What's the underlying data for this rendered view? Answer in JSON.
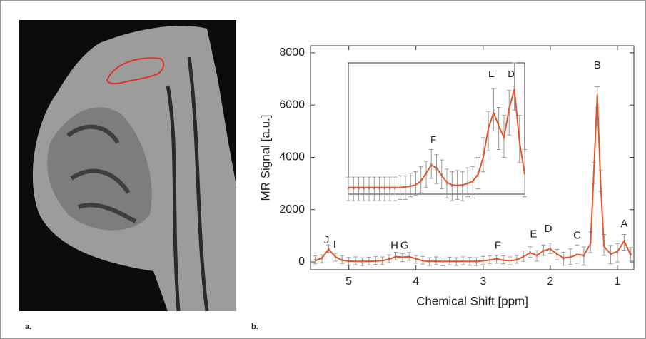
{
  "panel_labels": {
    "a": "a.",
    "b": "b."
  },
  "chart_data": [
    {
      "type": "line",
      "xlabel": "Chemical Shift [ppm]",
      "ylabel": "MR Signal [a.u.]",
      "xlim": [
        5.57,
        0.755
      ],
      "ylim": [
        -300,
        8270
      ],
      "xticks": [
        5,
        4,
        3,
        2,
        1
      ],
      "yticks": [
        0,
        2000,
        4000,
        6000,
        8000
      ],
      "x": [
        5.5,
        5.4,
        5.3,
        5.2,
        5.1,
        5.0,
        4.9,
        4.8,
        4.7,
        4.6,
        4.5,
        4.4,
        4.3,
        4.2,
        4.1,
        4.0,
        3.9,
        3.8,
        3.7,
        3.6,
        3.5,
        3.4,
        3.3,
        3.2,
        3.1,
        3.0,
        2.9,
        2.8,
        2.7,
        2.6,
        2.5,
        2.4,
        2.3,
        2.2,
        2.1,
        2.0,
        1.9,
        1.8,
        1.7,
        1.6,
        1.5,
        1.4,
        1.35,
        1.3,
        1.25,
        1.2,
        1.1,
        1.0,
        0.9,
        0.8
      ],
      "series": [
        {
          "color": "#9a9a9a",
          "values": [
            80,
            120,
            500,
            180,
            90,
            20,
            40,
            10,
            30,
            50,
            40,
            120,
            220,
            160,
            210,
            100,
            60,
            10,
            40,
            0,
            30,
            10,
            40,
            20,
            10,
            60,
            90,
            100,
            80,
            40,
            100,
            220,
            380,
            230,
            450,
            520,
            280,
            120,
            200,
            300,
            220,
            750,
            3400,
            6300,
            3100,
            650,
            280,
            350,
            750,
            300
          ],
          "errors": [
            150,
            150,
            150,
            150,
            150,
            150,
            150,
            150,
            150,
            150,
            150,
            150,
            150,
            150,
            150,
            150,
            150,
            150,
            150,
            150,
            150,
            150,
            150,
            150,
            150,
            150,
            150,
            150,
            150,
            150,
            150,
            200,
            200,
            200,
            200,
            200,
            200,
            250,
            300,
            350,
            350,
            400,
            400,
            400,
            400,
            400,
            350,
            350,
            300,
            250
          ]
        },
        {
          "color": "#e0562b",
          "values": [
            50,
            150,
            480,
            200,
            60,
            30,
            20,
            20,
            20,
            30,
            50,
            100,
            200,
            180,
            200,
            120,
            40,
            20,
            20,
            20,
            20,
            20,
            20,
            20,
            20,
            40,
            70,
            120,
            60,
            50,
            80,
            200,
            350,
            250,
            420,
            500,
            300,
            150,
            180,
            280,
            250,
            700,
            3500,
            6400,
            3000,
            600,
            300,
            400,
            800,
            250
          ]
        }
      ],
      "annotations": [
        {
          "text": "J",
          "x": 5.33,
          "y": 820
        },
        {
          "text": "I",
          "x": 5.21,
          "y": 650
        },
        {
          "text": "H",
          "x": 4.32,
          "y": 620
        },
        {
          "text": "G",
          "x": 4.17,
          "y": 620
        },
        {
          "text": "F",
          "x": 2.78,
          "y": 620
        },
        {
          "text": "E",
          "x": 2.25,
          "y": 1050
        },
        {
          "text": "D",
          "x": 2.03,
          "y": 1250
        },
        {
          "text": "C",
          "x": 1.6,
          "y": 1000
        },
        {
          "text": "B",
          "x": 1.3,
          "y": 7500
        },
        {
          "text": "A",
          "x": 0.9,
          "y": 1450
        }
      ]
    },
    {
      "type": "line",
      "xlim": [
        3.6,
        1.9
      ],
      "ylim": [
        0,
        1000
      ],
      "x": [
        3.6,
        3.55,
        3.5,
        3.45,
        3.4,
        3.35,
        3.3,
        3.25,
        3.2,
        3.15,
        3.1,
        3.05,
        3.0,
        2.95,
        2.9,
        2.85,
        2.8,
        2.75,
        2.7,
        2.65,
        2.6,
        2.55,
        2.5,
        2.45,
        2.4,
        2.35,
        2.3,
        2.25,
        2.2,
        2.15,
        2.1,
        2.05,
        2.0,
        1.95,
        1.9
      ],
      "series": [
        {
          "color": "#9a9a9a",
          "values": [
            40,
            40,
            40,
            40,
            40,
            40,
            40,
            40,
            40,
            40,
            50,
            50,
            70,
            80,
            110,
            150,
            230,
            190,
            150,
            80,
            60,
            70,
            60,
            90,
            90,
            160,
            300,
            480,
            640,
            500,
            440,
            620,
            820,
            420,
            160
          ],
          "errors": [
            90,
            90,
            90,
            90,
            90,
            90,
            90,
            90,
            90,
            90,
            90,
            90,
            90,
            90,
            100,
            100,
            110,
            110,
            110,
            110,
            110,
            110,
            110,
            110,
            120,
            120,
            130,
            150,
            160,
            160,
            160,
            170,
            180,
            180,
            180
          ]
        },
        {
          "color": "#e0562b",
          "values": [
            50,
            50,
            50,
            50,
            50,
            50,
            50,
            50,
            50,
            50,
            50,
            55,
            60,
            70,
            100,
            160,
            220,
            200,
            140,
            90,
            70,
            65,
            70,
            80,
            100,
            150,
            280,
            500,
            620,
            520,
            430,
            650,
            800,
            400,
            150
          ]
        }
      ],
      "annotations": [
        {
          "text": "F",
          "x": 2.78,
          "y": 410
        },
        {
          "text": "E",
          "x": 2.22,
          "y": 910
        },
        {
          "text": "D",
          "x": 2.03,
          "y": 910
        }
      ]
    }
  ]
}
